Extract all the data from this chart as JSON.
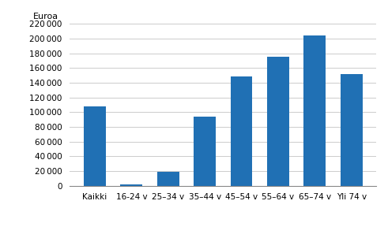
{
  "categories": [
    "Kaikki",
    "16-24 v",
    "25–34 v",
    "35–44 v",
    "45–54 v",
    "55–64 v",
    "65–74 v",
    "Yli 74 v"
  ],
  "values": [
    107200,
    2000,
    19000,
    94000,
    148000,
    175000,
    204000,
    152000
  ],
  "bar_color": "#2070b4",
  "ylabel": "Euroa",
  "ylim": [
    0,
    220000
  ],
  "yticks": [
    0,
    20000,
    40000,
    60000,
    80000,
    100000,
    120000,
    140000,
    160000,
    180000,
    200000,
    220000
  ],
  "background_color": "#ffffff",
  "grid_color": "#cccccc"
}
